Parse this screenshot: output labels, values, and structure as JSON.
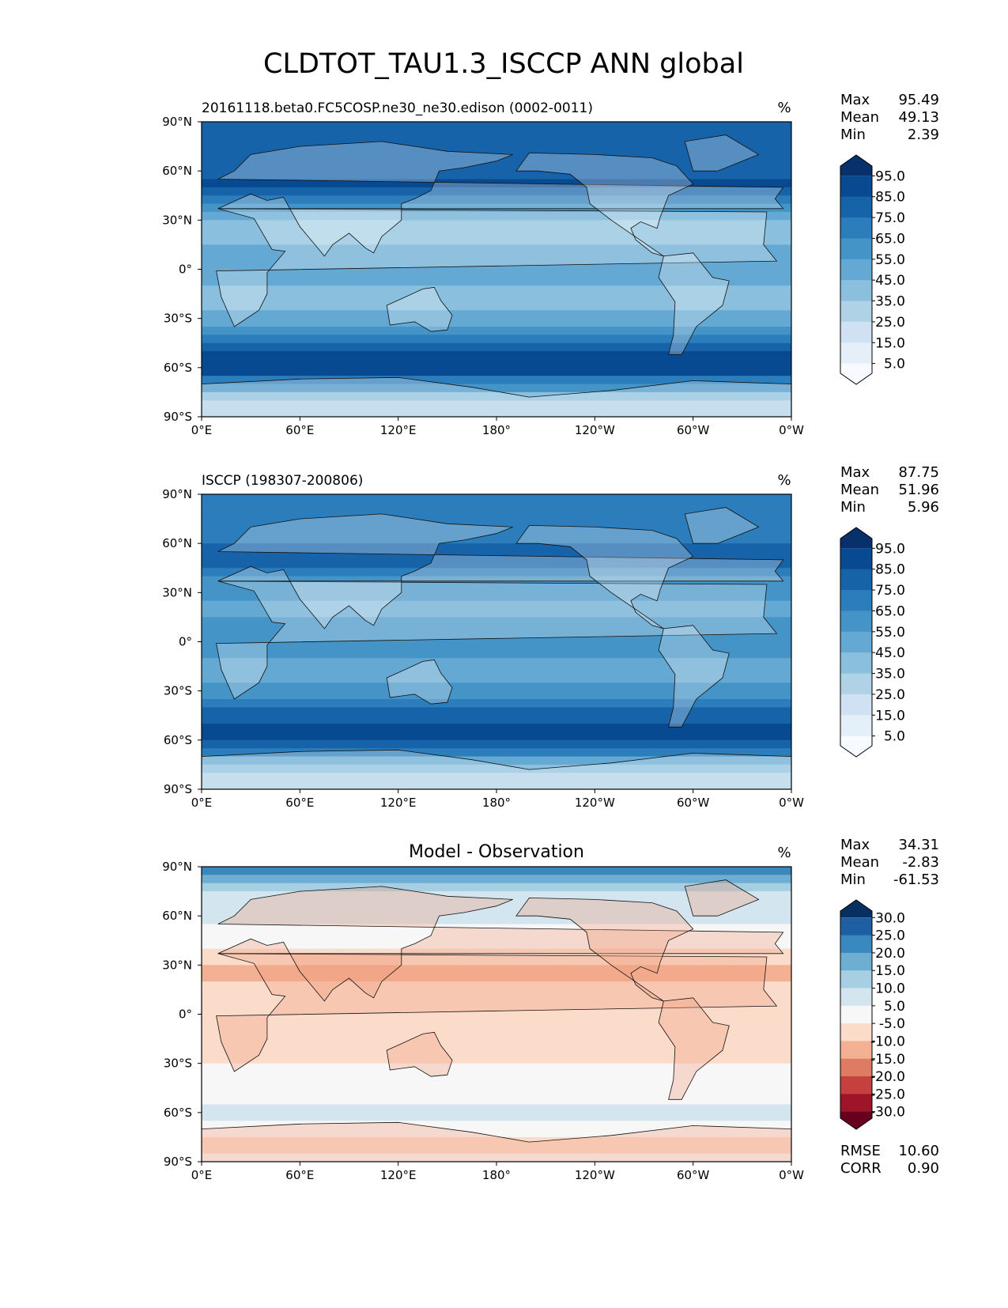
{
  "chart_data": {
    "type": "heatmap",
    "title": "CLDTOT_TAU1.3_ISCCP ANN global",
    "x_ticks": [
      "0°E",
      "60°E",
      "120°E",
      "180°",
      "120°W",
      "60°W",
      "0°W"
    ],
    "y_ticks": [
      "90°N",
      "60°N",
      "30°N",
      "0°",
      "30°S",
      "60°S",
      "90°S"
    ],
    "lon_range": [
      0,
      360
    ],
    "lat_range": [
      -90,
      90
    ],
    "panels": [
      {
        "title_left": "20161118.beta0.FC5COSP.ne30_ne30.edison (0002-0011)",
        "title_center": "",
        "units": "%",
        "stats": [
          {
            "label": "Max",
            "value": "95.49"
          },
          {
            "label": "Mean",
            "value": "49.13"
          },
          {
            "label": "Min",
            "value": "2.39"
          }
        ],
        "colorbar": {
          "labels": [
            "95.0",
            "85.0",
            "75.0",
            "65.0",
            "55.0",
            "45.0",
            "35.0",
            "25.0",
            "15.0",
            "5.0"
          ],
          "colors": [
            "#08306b",
            "#084a91",
            "#1763aa",
            "#2c7dbb",
            "#4594c7",
            "#64a9d3",
            "#8abfdd",
            "#b0d2e7",
            "#cfe1f2",
            "#e4eff9",
            "#f7fbff"
          ]
        },
        "zonal_profile": [
          [
            90,
            75
          ],
          [
            80,
            80
          ],
          [
            70,
            72
          ],
          [
            60,
            76
          ],
          [
            50,
            86
          ],
          [
            40,
            60
          ],
          [
            30,
            38
          ],
          [
            20,
            30
          ],
          [
            10,
            45
          ],
          [
            0,
            48
          ],
          [
            -10,
            40
          ],
          [
            -20,
            35
          ],
          [
            -30,
            42
          ],
          [
            -40,
            62
          ],
          [
            -50,
            85
          ],
          [
            -60,
            90
          ],
          [
            -70,
            60
          ],
          [
            -80,
            25
          ],
          [
            -90,
            22
          ]
        ]
      },
      {
        "title_left": "ISCCP (198307-200806)",
        "title_center": "",
        "units": "%",
        "stats": [
          {
            "label": "Max",
            "value": "87.75"
          },
          {
            "label": "Mean",
            "value": "51.96"
          },
          {
            "label": "Min",
            "value": "5.96"
          }
        ],
        "colorbar": {
          "labels": [
            "95.0",
            "85.0",
            "75.0",
            "65.0",
            "55.0",
            "45.0",
            "35.0",
            "25.0",
            "15.0",
            "5.0"
          ],
          "colors": [
            "#08306b",
            "#084a91",
            "#1763aa",
            "#2c7dbb",
            "#4594c7",
            "#64a9d3",
            "#8abfdd",
            "#b0d2e7",
            "#cfe1f2",
            "#e4eff9",
            "#f7fbff"
          ]
        },
        "zonal_profile": [
          [
            90,
            65
          ],
          [
            80,
            70
          ],
          [
            70,
            66
          ],
          [
            60,
            70
          ],
          [
            50,
            80
          ],
          [
            40,
            62
          ],
          [
            30,
            52
          ],
          [
            20,
            45
          ],
          [
            10,
            55
          ],
          [
            0,
            58
          ],
          [
            -10,
            48
          ],
          [
            -20,
            45
          ],
          [
            -30,
            52
          ],
          [
            -40,
            68
          ],
          [
            -50,
            82
          ],
          [
            -60,
            84
          ],
          [
            -70,
            55
          ],
          [
            -80,
            30
          ],
          [
            -90,
            28
          ]
        ]
      },
      {
        "title_left": "",
        "title_center": "Model - Observation",
        "units": "%",
        "stats": [
          {
            "label": "Max",
            "value": "34.31"
          },
          {
            "label": "Mean",
            "value": "-2.83"
          },
          {
            "label": "Min",
            "value": "-61.53"
          }
        ],
        "colorbar": {
          "labels": [
            "30.0",
            "25.0",
            "20.0",
            "15.0",
            "10.0",
            "5.0",
            "-5.0",
            "-10.0",
            "-15.0",
            "-20.0",
            "-25.0",
            "-30.0"
          ],
          "colors": [
            "#053061",
            "#1d5fa2",
            "#3a88c0",
            "#6faed3",
            "#a6cfe4",
            "#d3e6f0",
            "#f7f7f7",
            "#fbdccb",
            "#f4b093",
            "#df7b62",
            "#c4413e",
            "#9e1428",
            "#67001f"
          ]
        },
        "zonal_profile": [
          [
            90,
            25
          ],
          [
            80,
            12
          ],
          [
            70,
            8
          ],
          [
            60,
            6
          ],
          [
            50,
            4
          ],
          [
            40,
            -4
          ],
          [
            30,
            -12
          ],
          [
            20,
            -10
          ],
          [
            10,
            -6
          ],
          [
            0,
            -5
          ],
          [
            -10,
            -6
          ],
          [
            -20,
            -8
          ],
          [
            -30,
            -6
          ],
          [
            -40,
            0
          ],
          [
            -50,
            4
          ],
          [
            -60,
            6
          ],
          [
            -70,
            2
          ],
          [
            -80,
            -8
          ],
          [
            -90,
            -4
          ]
        ]
      }
    ],
    "error_stats": [
      {
        "label": "RMSE",
        "value": "10.60"
      },
      {
        "label": "CORR",
        "value": "0.90"
      }
    ]
  }
}
